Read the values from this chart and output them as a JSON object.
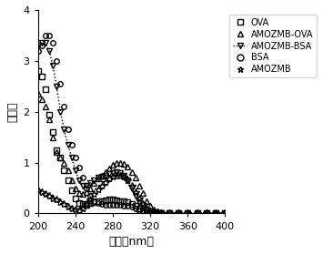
{
  "title": "",
  "xlabel": "波长（nm）",
  "ylabel": "吸光値",
  "xlim": [
    200,
    400
  ],
  "ylim": [
    0,
    4
  ],
  "yticks": [
    0,
    1,
    2,
    3,
    4
  ],
  "xticks": [
    200,
    240,
    280,
    320,
    360,
    400
  ],
  "series": {
    "OVA": {
      "marker": "s",
      "linestyle": "none",
      "color": "black",
      "x": [
        200,
        204,
        208,
        212,
        216,
        220,
        224,
        228,
        232,
        236,
        240,
        244,
        248,
        252,
        256,
        260,
        264,
        268,
        272,
        276,
        280,
        284,
        288,
        292,
        296,
        300,
        304,
        308,
        312,
        316,
        320,
        324,
        328,
        332,
        340,
        350,
        360,
        370,
        380,
        390,
        400
      ],
      "y": [
        2.8,
        2.7,
        2.45,
        1.95,
        1.6,
        1.25,
        1.1,
        0.85,
        0.65,
        0.45,
        0.3,
        0.2,
        0.18,
        0.17,
        0.2,
        0.22,
        0.24,
        0.25,
        0.26,
        0.27,
        0.27,
        0.26,
        0.25,
        0.24,
        0.22,
        0.19,
        0.15,
        0.1,
        0.06,
        0.03,
        0.02,
        0.01,
        0.01,
        0.01,
        0.01,
        0.01,
        0.01,
        0.01,
        0.01,
        0.01,
        0.01
      ]
    },
    "AMOZMB-OVA": {
      "marker": "^",
      "linestyle": "none",
      "color": "black",
      "x": [
        200,
        204,
        208,
        212,
        216,
        220,
        224,
        228,
        232,
        236,
        240,
        244,
        248,
        252,
        256,
        260,
        264,
        268,
        272,
        276,
        280,
        284,
        288,
        292,
        296,
        300,
        304,
        308,
        312,
        316,
        320,
        324,
        328,
        332,
        340,
        350,
        360,
        370,
        380,
        390,
        400
      ],
      "y": [
        2.35,
        2.25,
        2.1,
        1.85,
        1.5,
        1.2,
        1.1,
        1.0,
        0.85,
        0.65,
        0.5,
        0.4,
        0.38,
        0.42,
        0.5,
        0.6,
        0.68,
        0.75,
        0.82,
        0.88,
        0.95,
        1.0,
        1.0,
        0.98,
        0.92,
        0.82,
        0.7,
        0.55,
        0.4,
        0.25,
        0.15,
        0.08,
        0.05,
        0.03,
        0.02,
        0.01,
        0.01,
        0.01,
        0.01,
        0.01,
        0.01
      ]
    },
    "AMOZMB-BSA": {
      "marker": "v",
      "linestyle": "dotted",
      "color": "black",
      "x": [
        200,
        204,
        208,
        212,
        216,
        220,
        224,
        228,
        232,
        236,
        240,
        244,
        248,
        252,
        256,
        260,
        264,
        268,
        272,
        276,
        280,
        284,
        288,
        292,
        296,
        300,
        304,
        308,
        312,
        316,
        320,
        324,
        328,
        332,
        340,
        350,
        360,
        370,
        380,
        390,
        400
      ],
      "y": [
        3.3,
        3.35,
        3.35,
        3.2,
        2.9,
        2.5,
        2.0,
        1.65,
        1.35,
        1.1,
        0.85,
        0.65,
        0.55,
        0.55,
        0.6,
        0.65,
        0.7,
        0.72,
        0.75,
        0.78,
        0.8,
        0.82,
        0.8,
        0.75,
        0.65,
        0.5,
        0.35,
        0.22,
        0.12,
        0.06,
        0.04,
        0.02,
        0.01,
        0.01,
        0.01,
        0.01,
        0.01,
        0.01,
        0.01,
        0.01,
        0.01
      ]
    },
    "BSA": {
      "marker": "o",
      "linestyle": "none",
      "color": "black",
      "x": [
        200,
        204,
        208,
        212,
        216,
        220,
        224,
        228,
        232,
        236,
        240,
        244,
        248,
        252,
        256,
        260,
        264,
        268,
        272,
        276,
        280,
        284,
        288,
        292,
        296,
        300,
        304,
        308,
        312,
        316,
        320,
        324,
        328,
        332,
        340,
        350,
        360,
        370,
        380,
        390,
        400
      ],
      "y": [
        3.2,
        3.3,
        3.5,
        3.5,
        3.35,
        3.0,
        2.55,
        2.1,
        1.65,
        1.35,
        1.1,
        0.9,
        0.7,
        0.5,
        0.35,
        0.25,
        0.2,
        0.18,
        0.17,
        0.17,
        0.17,
        0.17,
        0.17,
        0.16,
        0.15,
        0.13,
        0.1,
        0.07,
        0.04,
        0.02,
        0.01,
        0.01,
        0.01,
        0.01,
        0.01,
        0.01,
        0.01,
        0.01,
        0.01,
        0.01,
        0.01
      ]
    },
    "AMOZMB": {
      "marker": "*",
      "linestyle": "none",
      "color": "black",
      "x": [
        200,
        204,
        208,
        212,
        216,
        220,
        224,
        228,
        232,
        236,
        240,
        244,
        248,
        252,
        256,
        260,
        264,
        268,
        272,
        276,
        280,
        284,
        288,
        292,
        296,
        300,
        304,
        308,
        312,
        316,
        320,
        324,
        328,
        332,
        340,
        350,
        360,
        370,
        380,
        390,
        400
      ],
      "y": [
        0.45,
        0.42,
        0.38,
        0.35,
        0.3,
        0.28,
        0.22,
        0.18,
        0.14,
        0.1,
        0.08,
        0.07,
        0.1,
        0.18,
        0.28,
        0.38,
        0.48,
        0.55,
        0.62,
        0.68,
        0.72,
        0.75,
        0.75,
        0.72,
        0.65,
        0.55,
        0.42,
        0.3,
        0.18,
        0.1,
        0.05,
        0.03,
        0.02,
        0.01,
        0.01,
        0.01,
        0.01,
        0.01,
        0.01,
        0.01,
        0.01
      ]
    }
  },
  "legend_order": [
    "OVA",
    "AMOZMB-OVA",
    "AMOZMB-BSA",
    "BSA",
    "AMOZMB"
  ],
  "legend_markers": {
    "OVA": "s",
    "AMOZMB-OVA": "^",
    "AMOZMB-BSA": "v",
    "BSA": "o",
    "AMOZMB": "*"
  },
  "background_color": "#ffffff"
}
